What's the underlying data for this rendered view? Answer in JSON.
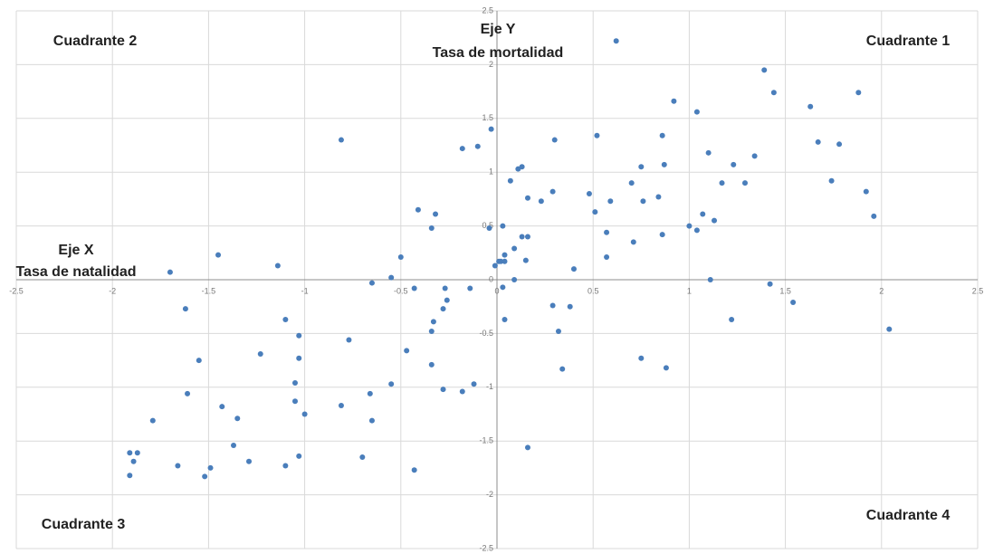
{
  "chart_data": {
    "type": "scatter",
    "color": "#4a7ebb",
    "grid": true,
    "xlim": [
      -2.5,
      2.5
    ],
    "ylim": [
      -2.5,
      2.5
    ],
    "xticks": [
      -2.5,
      -2,
      -1.5,
      -1,
      -0.5,
      0,
      0.5,
      1,
      1.5,
      2,
      2.5
    ],
    "yticks": [
      -2.5,
      -2,
      -1.5,
      -1,
      -0.5,
      0,
      0.5,
      1,
      1.5,
      2,
      2.5
    ],
    "xlabel": [
      "Eje X",
      "Tasa de natalidad"
    ],
    "ylabel": [
      "Eje Y",
      "Tasa de mortalidad"
    ],
    "annotations": [
      "Cuadrante 1",
      "Cuadrante 2",
      "Cuadrante 3",
      "Cuadrante 4"
    ],
    "x": [
      0.62,
      1.39,
      1.44,
      1.88,
      0.92,
      1.63,
      1.04,
      -0.03,
      -0.81,
      0.3,
      0.52,
      0.86,
      1.67,
      1.78,
      -0.1,
      -0.18,
      1.1,
      1.34,
      0.87,
      0.75,
      1.23,
      0.13,
      0.11,
      0.07,
      1.74,
      0.7,
      1.17,
      1.29,
      0.29,
      0.48,
      1.92,
      0.16,
      0.84,
      0.23,
      0.59,
      0.76,
      -0.41,
      -0.32,
      0.51,
      1.07,
      1.96,
      1.13,
      1.0,
      0.03,
      -0.34,
      -0.04,
      1.04,
      0.57,
      0.86,
      0.13,
      0.16,
      0.71,
      0.09,
      -1.45,
      0.04,
      -0.5,
      0.57,
      0.15,
      0.02,
      0.04,
      0.01,
      -0.01,
      -1.14,
      0.4,
      -1.7,
      -0.55,
      0.09,
      1.11,
      -0.65,
      1.42,
      -0.43,
      -0.27,
      -0.14,
      0.03,
      -0.26,
      1.54,
      -1.62,
      -0.28,
      0.29,
      0.38,
      -1.1,
      0.04,
      1.22,
      -0.33,
      2.04,
      -0.34,
      0.32,
      -1.03,
      -0.77,
      -0.47,
      -1.23,
      0.75,
      -1.03,
      -1.55,
      -0.34,
      0.88,
      0.34,
      -1.05,
      -0.55,
      -0.12,
      -0.28,
      -0.18,
      -1.61,
      -0.66,
      -1.05,
      -0.81,
      -1.43,
      -1.0,
      -1.35,
      -1.79,
      -0.65,
      -1.37,
      0.16,
      -1.91,
      -1.87,
      -1.03,
      -0.7,
      -1.89,
      -1.29,
      -1.66,
      -1.1,
      -1.49,
      -0.43,
      -1.91,
      -1.52
    ],
    "values": [
      2.22,
      1.95,
      1.74,
      1.74,
      1.66,
      1.61,
      1.56,
      1.4,
      1.3,
      1.3,
      1.34,
      1.34,
      1.28,
      1.26,
      1.24,
      1.22,
      1.18,
      1.15,
      1.07,
      1.05,
      1.07,
      1.05,
      1.03,
      0.92,
      0.92,
      0.9,
      0.9,
      0.9,
      0.82,
      0.8,
      0.82,
      0.76,
      0.77,
      0.73,
      0.73,
      0.73,
      0.65,
      0.61,
      0.63,
      0.61,
      0.59,
      0.55,
      0.5,
      0.5,
      0.48,
      0.48,
      0.46,
      0.44,
      0.42,
      0.4,
      0.4,
      0.35,
      0.29,
      0.23,
      0.23,
      0.21,
      0.21,
      0.18,
      0.17,
      0.17,
      0.17,
      0.13,
      0.13,
      0.1,
      0.07,
      0.02,
      0.0,
      0.0,
      -0.03,
      -0.04,
      -0.08,
      -0.08,
      -0.08,
      -0.07,
      -0.19,
      -0.21,
      -0.27,
      -0.27,
      -0.24,
      -0.25,
      -0.37,
      -0.37,
      -0.37,
      -0.39,
      -0.46,
      -0.48,
      -0.48,
      -0.52,
      -0.56,
      -0.66,
      -0.69,
      -0.73,
      -0.73,
      -0.75,
      -0.79,
      -0.82,
      -0.83,
      -0.96,
      -0.97,
      -0.97,
      -1.02,
      -1.04,
      -1.06,
      -1.06,
      -1.13,
      -1.17,
      -1.18,
      -1.25,
      -1.29,
      -1.31,
      -1.31,
      -1.54,
      -1.56,
      -1.61,
      -1.61,
      -1.64,
      -1.65,
      -1.69,
      -1.69,
      -1.73,
      -1.73,
      -1.75,
      -1.77,
      -1.82,
      -1.83
    ]
  }
}
